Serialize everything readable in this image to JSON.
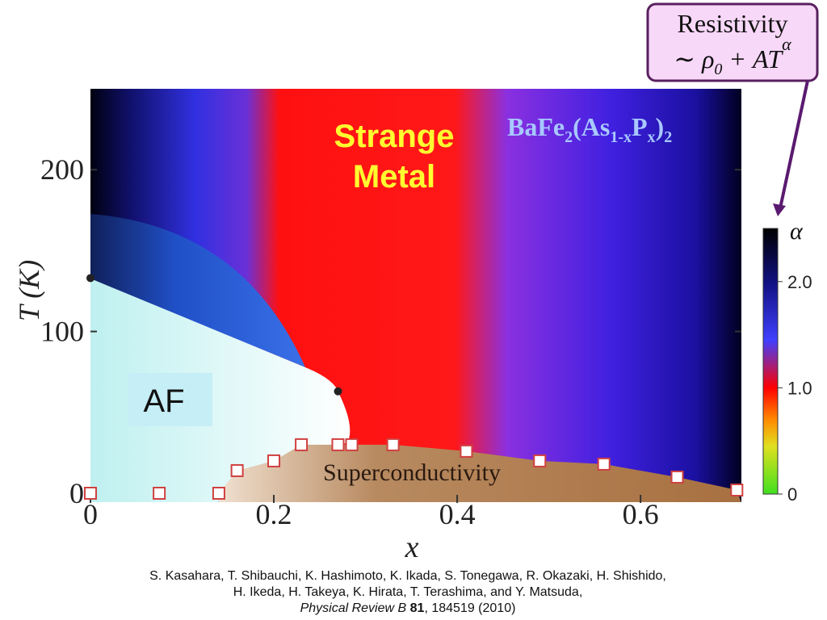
{
  "chart_data": {
    "type": "phase-diagram",
    "callout": {
      "title": "Resistivity",
      "formula_parts": [
        "∼ ρ",
        "0",
        " + AT",
        "α"
      ]
    },
    "compound_parts": [
      "BaFe",
      "2",
      "(As",
      "1-x",
      "P",
      "x",
      ")",
      "2"
    ],
    "regions": {
      "strange_metal": [
        "Strange",
        "Metal"
      ],
      "af": "AF",
      "sc": "Superconductivity"
    },
    "xlabel": "x",
    "ylabel": "T (K)",
    "xlim": [
      0,
      0.71
    ],
    "xticks": [
      0,
      0.2,
      0.4,
      0.6
    ],
    "ylim": [
      0,
      250
    ],
    "yticks": [
      0,
      100,
      200
    ],
    "tc_points": {
      "x": [
        0,
        0.075,
        0.14,
        0.16,
        0.2,
        0.23,
        0.27,
        0.285,
        0.33,
        0.41,
        0.49,
        0.56,
        0.64,
        0.705
      ],
      "values": [
        0,
        0,
        0,
        14,
        20,
        30,
        30,
        30,
        30,
        26,
        20,
        18,
        10,
        2
      ]
    },
    "tn_points": {
      "x": [
        0,
        0.27
      ],
      "values": [
        133,
        63
      ]
    },
    "colorbar": {
      "label": "α",
      "lim": [
        0,
        2.5
      ],
      "ticks": [
        0,
        {
          "value": 1,
          "label": "1.0"
        },
        {
          "value": 2,
          "label": "2.0"
        }
      ]
    },
    "citation": {
      "line1": "S. Kasahara, T. Shibauchi, K. Hashimoto, K. Ikada, S. Tonegawa, R. Okazaki, H. Shishido,",
      "line2": "H. Ikeda, H. Takeya, K. Hirata, T. Terashima, and Y. Matsuda,",
      "journal": "Physical Review B",
      "volume": "81",
      "rest": ", 184519 (2010)"
    }
  }
}
